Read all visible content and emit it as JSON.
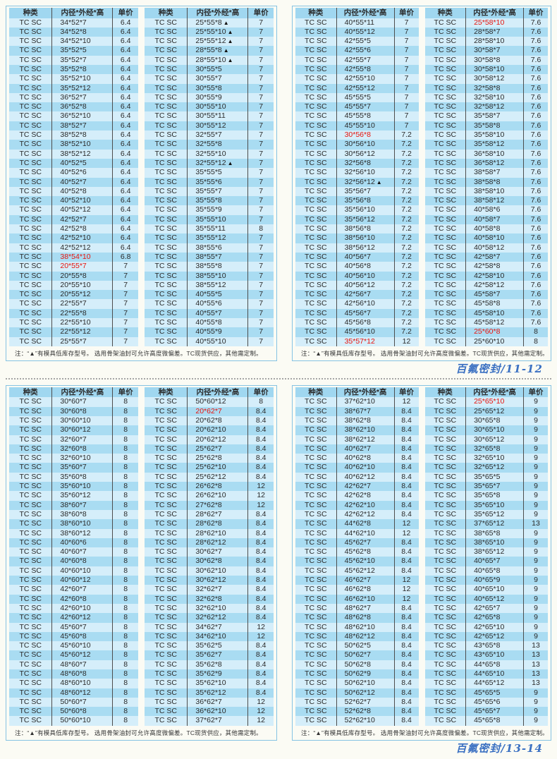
{
  "row_type": "TC SC",
  "header": {
    "type": "种类",
    "size": "内径*外经*高",
    "price": "单价"
  },
  "note": "注：“▲”有模具低库存型号。 选用骨架油封可允许高度微偏差。TC现货供应，其他需定制。",
  "colors": {
    "row_light": "#d5eefa",
    "row_dark": "#a9dcf2",
    "header_bg": "#a0d7f0",
    "highlight_red": "#e8130c",
    "footer_blue": "#3a70c2",
    "border_blue": "#86c3e3"
  },
  "legend": {
    "red": "highlighted size",
    "triangle": "有模具低库存型号"
  },
  "pages": [
    {
      "footer": "百氟密封/11-12",
      "tables": [
        [
          [
            "34*52*7",
            "6.4"
          ],
          [
            "34*52*8",
            "6.4"
          ],
          [
            "34*52*10",
            "6.4"
          ],
          [
            "35*52*5",
            "6.4"
          ],
          [
            "35*52*7",
            "6.4"
          ],
          [
            "35*52*8",
            "6.4"
          ],
          [
            "35*52*10",
            "6.4"
          ],
          [
            "35*52*12",
            "6.4"
          ],
          [
            "36*52*7",
            "6.4"
          ],
          [
            "36*52*8",
            "6.4"
          ],
          [
            "36*52*10",
            "6.4"
          ],
          [
            "38*52*7",
            "6.4"
          ],
          [
            "38*52*8",
            "6.4"
          ],
          [
            "38*52*10",
            "6.4"
          ],
          [
            "38*52*12",
            "6.4"
          ],
          [
            "40*52*5",
            "6.4"
          ],
          [
            "40*52*6",
            "6.4"
          ],
          [
            "40*52*7",
            "6.4"
          ],
          [
            "40*52*8",
            "6.4"
          ],
          [
            "40*52*10",
            "6.4"
          ],
          [
            "40*52*12",
            "6.4"
          ],
          [
            "42*52*7",
            "6.4"
          ],
          [
            "42*52*8",
            "6.4"
          ],
          [
            "42*52*10",
            "6.4"
          ],
          [
            "42*52*12",
            "6.4"
          ],
          [
            "38*54*10",
            "6.8",
            "r"
          ],
          [
            "20*55*7",
            "7",
            "r"
          ],
          [
            "20*55*8",
            "7"
          ],
          [
            "20*55*10",
            "7"
          ],
          [
            "20*55*12",
            "7"
          ],
          [
            "22*55*7",
            "7"
          ],
          [
            "22*55*8",
            "7"
          ],
          [
            "22*55*10",
            "7"
          ],
          [
            "22*55*12",
            "7"
          ],
          [
            "25*55*7",
            "7"
          ]
        ],
        [
          [
            "25*55*8",
            "7",
            "t"
          ],
          [
            "25*55*10",
            "7",
            "t"
          ],
          [
            "25*55*12",
            "7",
            "t"
          ],
          [
            "28*55*8",
            "7",
            "t"
          ],
          [
            "28*55*10",
            "7",
            "t"
          ],
          [
            "30*55*5",
            "7"
          ],
          [
            "30*55*7",
            "7"
          ],
          [
            "30*55*8",
            "7"
          ],
          [
            "30*55*9",
            "7"
          ],
          [
            "30*55*10",
            "7"
          ],
          [
            "30*55*11",
            "7"
          ],
          [
            "30*55*12",
            "7"
          ],
          [
            "32*55*7",
            "7"
          ],
          [
            "32*55*8",
            "7"
          ],
          [
            "32*55*10",
            "7"
          ],
          [
            "32*55*12",
            "7",
            "t"
          ],
          [
            "35*55*5",
            "7"
          ],
          [
            "35*55*6",
            "7"
          ],
          [
            "35*55*7",
            "7"
          ],
          [
            "35*55*8",
            "7"
          ],
          [
            "35*55*9",
            "7"
          ],
          [
            "35*55*10",
            "7"
          ],
          [
            "35*55*11",
            "8"
          ],
          [
            "35*55*12",
            "7"
          ],
          [
            "38*55*6",
            "7"
          ],
          [
            "38*55*7",
            "7"
          ],
          [
            "38*55*8",
            "7"
          ],
          [
            "38*55*10",
            "7"
          ],
          [
            "38*55*12",
            "7"
          ],
          [
            "40*55*5",
            "7"
          ],
          [
            "40*55*6",
            "7"
          ],
          [
            "40*55*7",
            "7"
          ],
          [
            "40*55*8",
            "7"
          ],
          [
            "40*55*9",
            "7"
          ],
          [
            "40*55*10",
            "7"
          ]
        ],
        [
          [
            "40*55*11",
            "7"
          ],
          [
            "40*55*12",
            "7"
          ],
          [
            "42*55*5",
            "7"
          ],
          [
            "42*55*6",
            "7"
          ],
          [
            "42*55*7",
            "7"
          ],
          [
            "42*55*8",
            "7"
          ],
          [
            "42*55*10",
            "7"
          ],
          [
            "42*55*12",
            "7"
          ],
          [
            "45*55*5",
            "7"
          ],
          [
            "45*55*7",
            "7"
          ],
          [
            "45*55*8",
            "7"
          ],
          [
            "45*55*10",
            "7"
          ],
          [
            "30*56*8",
            "7.2",
            "r"
          ],
          [
            "30*56*10",
            "7.2"
          ],
          [
            "30*56*12",
            "7.2"
          ],
          [
            "32*56*8",
            "7.2"
          ],
          [
            "32*56*10",
            "7.2"
          ],
          [
            "32*56*12",
            "7.2",
            "t"
          ],
          [
            "35*56*7",
            "7.2"
          ],
          [
            "35*56*8",
            "7.2"
          ],
          [
            "35*56*10",
            "7.2"
          ],
          [
            "35*56*12",
            "7.2"
          ],
          [
            "38*56*8",
            "7.2"
          ],
          [
            "38*56*10",
            "7.2"
          ],
          [
            "38*56*12",
            "7.2"
          ],
          [
            "40*56*7",
            "7.2"
          ],
          [
            "40*56*8",
            "7.2"
          ],
          [
            "40*56*10",
            "7.2"
          ],
          [
            "40*56*12",
            "7.2"
          ],
          [
            "42*56*7",
            "7.2"
          ],
          [
            "42*56*10",
            "7.2"
          ],
          [
            "45*56*7",
            "7.2"
          ],
          [
            "45*56*8",
            "7.2"
          ],
          [
            "45*56*10",
            "7.2"
          ],
          [
            "35*57*12",
            "12",
            "r"
          ]
        ],
        [
          [
            "25*58*10",
            "7.6",
            "r"
          ],
          [
            "28*58*7",
            "7.6"
          ],
          [
            "28*58*10",
            "7.6"
          ],
          [
            "30*58*7",
            "7.6"
          ],
          [
            "30*58*8",
            "7.6"
          ],
          [
            "30*58*10",
            "7.6"
          ],
          [
            "30*58*12",
            "7.6"
          ],
          [
            "32*58*8",
            "7.6"
          ],
          [
            "32*58*10",
            "7.6"
          ],
          [
            "32*58*12",
            "7.6"
          ],
          [
            "35*58*7",
            "7.6"
          ],
          [
            "35*58*8",
            "7.6"
          ],
          [
            "35*58*10",
            "7.6"
          ],
          [
            "35*58*12",
            "7.6"
          ],
          [
            "36*58*10",
            "7.6"
          ],
          [
            "36*58*12",
            "7.6"
          ],
          [
            "38*58*7",
            "7.6"
          ],
          [
            "38*58*8",
            "7.6"
          ],
          [
            "38*58*10",
            "7.6"
          ],
          [
            "38*58*12",
            "7.6"
          ],
          [
            "40*58*6",
            "7.6"
          ],
          [
            "40*58*7",
            "7.6"
          ],
          [
            "40*58*8",
            "7.6"
          ],
          [
            "40*58*10",
            "7.6"
          ],
          [
            "40*58*12",
            "7.6"
          ],
          [
            "42*58*7",
            "7.6"
          ],
          [
            "42*58*8",
            "7.6"
          ],
          [
            "42*58*10",
            "7.6"
          ],
          [
            "42*58*12",
            "7.6"
          ],
          [
            "45*58*7",
            "7.6"
          ],
          [
            "45*58*8",
            "7.6"
          ],
          [
            "45*58*10",
            "7.6"
          ],
          [
            "45*58*12",
            "7.6"
          ],
          [
            "25*60*8",
            "8",
            "r"
          ],
          [
            "25*60*10",
            "8"
          ]
        ]
      ]
    },
    {
      "footer": "百氟密封/13-14",
      "tables": [
        [
          [
            "30*60*7",
            "8"
          ],
          [
            "30*60*8",
            "8"
          ],
          [
            "30*60*10",
            "8"
          ],
          [
            "30*60*12",
            "8"
          ],
          [
            "32*60*7",
            "8"
          ],
          [
            "32*60*8",
            "8"
          ],
          [
            "32*60*10",
            "8"
          ],
          [
            "35*60*7",
            "8"
          ],
          [
            "35*60*8",
            "8"
          ],
          [
            "35*60*10",
            "8"
          ],
          [
            "35*60*12",
            "8"
          ],
          [
            "38*60*7",
            "8"
          ],
          [
            "38*60*8",
            "8"
          ],
          [
            "38*60*10",
            "8"
          ],
          [
            "38*60*12",
            "8"
          ],
          [
            "40*60*6",
            "8"
          ],
          [
            "40*60*7",
            "8"
          ],
          [
            "40*60*8",
            "8"
          ],
          [
            "40*60*10",
            "8"
          ],
          [
            "40*60*12",
            "8"
          ],
          [
            "42*60*7",
            "8"
          ],
          [
            "42*60*8",
            "8"
          ],
          [
            "42*60*10",
            "8"
          ],
          [
            "42*60*12",
            "8"
          ],
          [
            "45*60*7",
            "8"
          ],
          [
            "45*60*8",
            "8"
          ],
          [
            "45*60*10",
            "8"
          ],
          [
            "45*60*12",
            "8"
          ],
          [
            "48*60*7",
            "8"
          ],
          [
            "48*60*8",
            "8"
          ],
          [
            "48*60*10",
            "8"
          ],
          [
            "48*60*12",
            "8"
          ],
          [
            "50*60*7",
            "8"
          ],
          [
            "50*60*8",
            "8"
          ],
          [
            "50*60*10",
            "8"
          ]
        ],
        [
          [
            "50*60*12",
            "8"
          ],
          [
            "20*62*7",
            "8.4",
            "r"
          ],
          [
            "20*62*8",
            "8.4"
          ],
          [
            "20*62*10",
            "8.4"
          ],
          [
            "20*62*12",
            "8.4"
          ],
          [
            "25*62*7",
            "8.4"
          ],
          [
            "25*62*8",
            "8.4"
          ],
          [
            "25*62*10",
            "8.4"
          ],
          [
            "25*62*12",
            "8.4"
          ],
          [
            "26*62*8",
            "12"
          ],
          [
            "26*62*10",
            "12"
          ],
          [
            "27*62*8",
            "12"
          ],
          [
            "28*62*7",
            "8.4"
          ],
          [
            "28*62*8",
            "8.4"
          ],
          [
            "28*62*10",
            "8.4"
          ],
          [
            "28*62*12",
            "8.4"
          ],
          [
            "30*62*7",
            "8.4"
          ],
          [
            "30*62*8",
            "8.4"
          ],
          [
            "30*62*10",
            "8.4"
          ],
          [
            "30*62*12",
            "8.4"
          ],
          [
            "32*62*7",
            "8.4"
          ],
          [
            "32*62*8",
            "8.4"
          ],
          [
            "32*62*10",
            "8.4"
          ],
          [
            "32*62*12",
            "8.4"
          ],
          [
            "34*62*7",
            "12"
          ],
          [
            "34*62*10",
            "12"
          ],
          [
            "35*62*5",
            "8.4"
          ],
          [
            "35*62*7",
            "8.4"
          ],
          [
            "35*62*8",
            "8.4"
          ],
          [
            "35*62*9",
            "8.4"
          ],
          [
            "35*62*10",
            "8.4"
          ],
          [
            "35*62*12",
            "8.4"
          ],
          [
            "36*62*7",
            "12"
          ],
          [
            "36*62*10",
            "12"
          ],
          [
            "37*62*7",
            "12"
          ]
        ],
        [
          [
            "37*62*10",
            "12"
          ],
          [
            "38*67*7",
            "8.4"
          ],
          [
            "38*62*8",
            "8.4"
          ],
          [
            "38*62*10",
            "8.4"
          ],
          [
            "38*62*12",
            "8.4"
          ],
          [
            "40*62*7",
            "8.4"
          ],
          [
            "40*62*8",
            "8.4"
          ],
          [
            "40*62*10",
            "8.4"
          ],
          [
            "40*62*12",
            "8.4"
          ],
          [
            "42*62*7",
            "8.4"
          ],
          [
            "42*62*8",
            "8.4"
          ],
          [
            "42*62*10",
            "8.4"
          ],
          [
            "42*62*12",
            "8.4"
          ],
          [
            "44*62*8",
            "12"
          ],
          [
            "44*62*10",
            "12"
          ],
          [
            "45*62*7",
            "8.4"
          ],
          [
            "45*62*8",
            "8.4"
          ],
          [
            "45*62*10",
            "8.4"
          ],
          [
            "45*62*12",
            "8.4"
          ],
          [
            "46*62*7",
            "12"
          ],
          [
            "46*62*8",
            "12"
          ],
          [
            "46*62*10",
            "12"
          ],
          [
            "48*62*7",
            "8.4"
          ],
          [
            "48*62*8",
            "8.4"
          ],
          [
            "48*62*10",
            "8.4"
          ],
          [
            "48*62*12",
            "8.4"
          ],
          [
            "50*62*5",
            "8.4"
          ],
          [
            "50*62*7",
            "8.4"
          ],
          [
            "50*62*8",
            "8.4"
          ],
          [
            "50*62*9",
            "8.4"
          ],
          [
            "50*62*10",
            "8.4"
          ],
          [
            "50*62*12",
            "8.4"
          ],
          [
            "52*62*7",
            "8.4"
          ],
          [
            "52*62*8",
            "8.4"
          ],
          [
            "52*62*10",
            "8.4"
          ]
        ],
        [
          [
            "25*65*10",
            "9",
            "r"
          ],
          [
            "25*65*12",
            "9"
          ],
          [
            "30*65*8",
            "9"
          ],
          [
            "30*65*10",
            "9"
          ],
          [
            "30*65*12",
            "9"
          ],
          [
            "32*65*8",
            "9"
          ],
          [
            "32*65*10",
            "9"
          ],
          [
            "32*65*12",
            "9"
          ],
          [
            "35*65*5",
            "9"
          ],
          [
            "35*65*7",
            "9"
          ],
          [
            "35*65*8",
            "9"
          ],
          [
            "35*65*10",
            "9"
          ],
          [
            "35*65*12",
            "9"
          ],
          [
            "37*65*12",
            "13"
          ],
          [
            "38*65*8",
            "9"
          ],
          [
            "38*65*10",
            "9"
          ],
          [
            "38*65*12",
            "9"
          ],
          [
            "40*65*7",
            "9"
          ],
          [
            "40*65*8",
            "9"
          ],
          [
            "40*65*9",
            "9"
          ],
          [
            "40*65*10",
            "9"
          ],
          [
            "40*65*12",
            "9"
          ],
          [
            "42*65*7",
            "9"
          ],
          [
            "42*65*8",
            "9"
          ],
          [
            "42*65*10",
            "9"
          ],
          [
            "42*65*12",
            "9"
          ],
          [
            "43*65*8",
            "13"
          ],
          [
            "43*65*10",
            "13"
          ],
          [
            "44*65*8",
            "13"
          ],
          [
            "44*65*10",
            "13"
          ],
          [
            "44*65*12",
            "13"
          ],
          [
            "45*65*5",
            "9"
          ],
          [
            "45*65*6",
            "9"
          ],
          [
            "45*65*7",
            "9"
          ],
          [
            "45*65*8",
            "9"
          ]
        ]
      ]
    }
  ]
}
